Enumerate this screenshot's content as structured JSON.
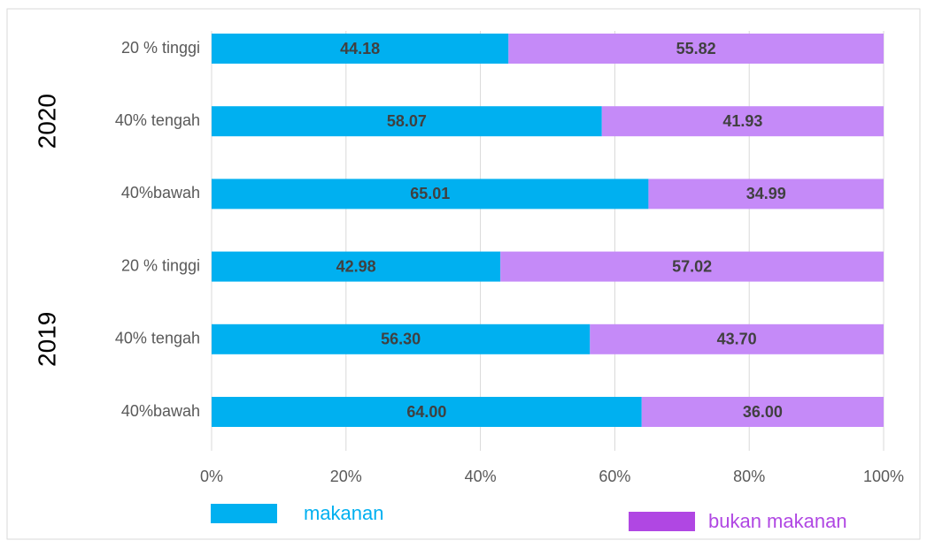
{
  "chart_data": {
    "type": "stacked_barh_percent",
    "group_labels": [
      "2020",
      "2019"
    ],
    "categories": [
      "20 % tinggi",
      "40% tengah",
      "40%bawah",
      "20 % tinggi",
      "40% tengah",
      "40%bawah"
    ],
    "series": [
      {
        "name": "makanan",
        "color": "#00b0f0",
        "legend_color": "#00b0f0",
        "values": [
          44.18,
          58.07,
          65.01,
          42.98,
          56.3,
          64
        ],
        "value_labels": [
          "44.18",
          "58.07",
          "65.01",
          "42.98",
          "56.30",
          "64.00"
        ]
      },
      {
        "name": "bukan makanan",
        "color": "#c58af8",
        "legend_color": "#b047e3",
        "values": [
          55.82,
          41.93,
          34.99,
          57.02,
          43.7,
          36
        ],
        "value_labels": [
          "55.82",
          "41.93",
          "34.99",
          "57.02",
          "43.70",
          "36.00"
        ]
      }
    ],
    "xlim": [
      0,
      100
    ],
    "xticks": [
      {
        "value": 0,
        "label": "0%"
      },
      {
        "value": 20,
        "label": "20%"
      },
      {
        "value": 40,
        "label": "40%"
      },
      {
        "value": 60,
        "label": "60%"
      },
      {
        "value": 80,
        "label": "80%"
      },
      {
        "value": 100,
        "label": "100%"
      }
    ],
    "grid": true
  }
}
